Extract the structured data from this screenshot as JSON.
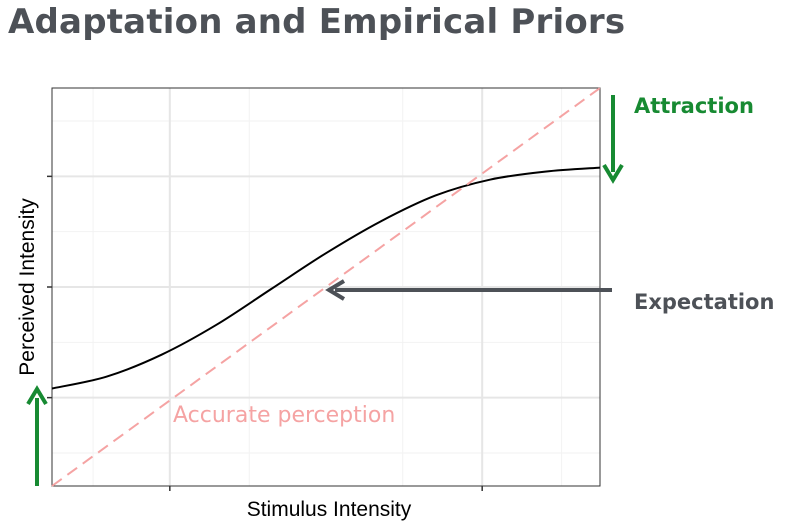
{
  "title": "Adaptation and Empirical Priors",
  "chart_data": {
    "type": "line",
    "xlabel": "Stimulus Intensity",
    "ylabel": "Perceived Intensity",
    "xlim": [
      0,
      1
    ],
    "ylim": [
      0,
      1
    ],
    "grid": true,
    "series": [
      {
        "style": "solid",
        "color": "#000000",
        "x": [
          0,
          0.1,
          0.2,
          0.3,
          0.4,
          0.5,
          0.6,
          0.7,
          0.8,
          0.9,
          1.0
        ],
        "y": [
          0.245,
          0.275,
          0.33,
          0.405,
          0.495,
          0.585,
          0.665,
          0.73,
          0.77,
          0.79,
          0.8
        ]
      },
      {
        "style": "dashed",
        "color": "#f5a3a3",
        "x": [
          0,
          1
        ],
        "y": [
          0,
          1
        ]
      }
    ],
    "annotations": {
      "accurate": "Accurate perception",
      "attraction": "Attraction",
      "expectation": "Expectation"
    },
    "colors": {
      "attraction": "#178a32",
      "expectation": "#4d5157",
      "accurate": "#f5a3a3",
      "curve": "#000000"
    }
  }
}
